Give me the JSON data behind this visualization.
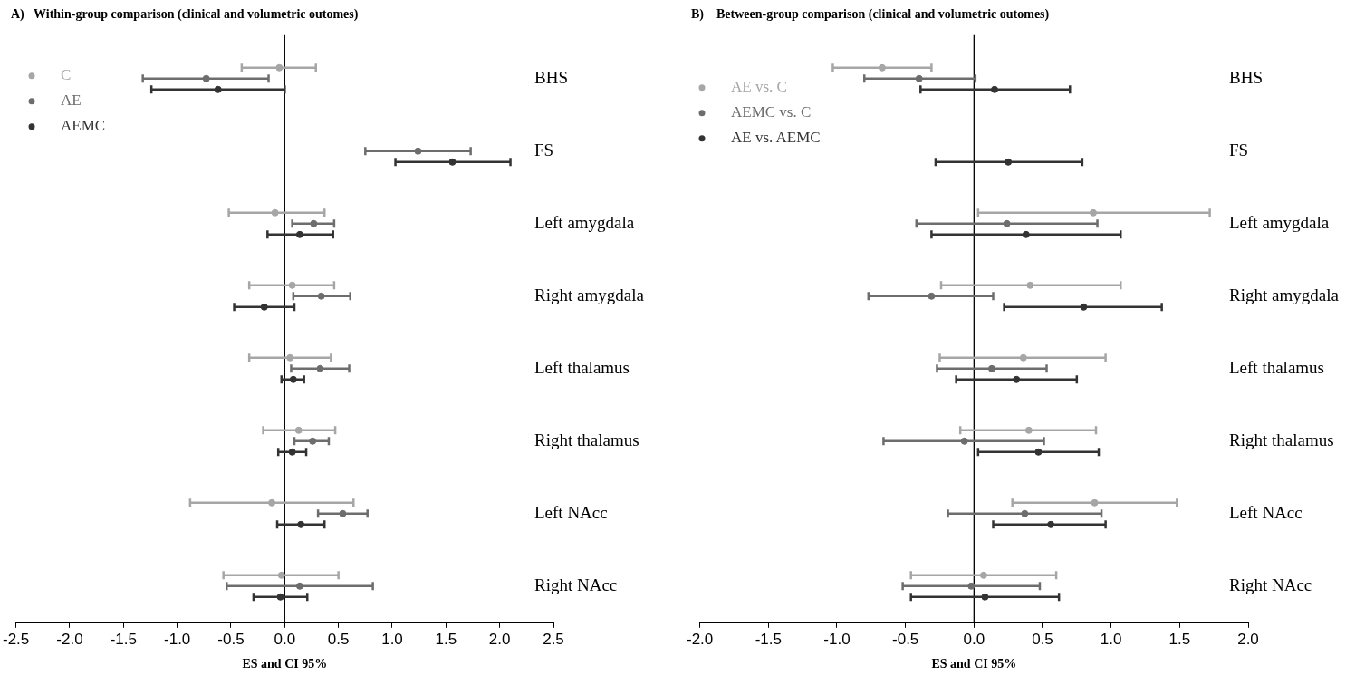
{
  "chart_data": [
    {
      "type": "scatter",
      "orientation": "horizontal",
      "title": "A)   Within-group comparison (clinical and volumetric outomes)",
      "xlabel": "ES and CI 95%",
      "categories": [
        "BHS",
        "FS",
        "Left amygdala",
        "Right amygdala",
        "Left thalamus",
        "Right thalamus",
        "Left NAcc",
        "Right NAcc"
      ],
      "series": [
        {
          "name": "C",
          "color": "#a6a6a6",
          "values": [
            -0.05,
            null,
            -0.09,
            0.07,
            0.05,
            0.13,
            -0.12,
            -0.03
          ],
          "errors": [
            [
              -0.4,
              0.29
            ],
            null,
            [
              -0.52,
              0.37
            ],
            [
              -0.33,
              0.46
            ],
            [
              -0.33,
              0.43
            ],
            [
              -0.2,
              0.47
            ],
            [
              -0.88,
              0.64
            ],
            [
              -0.57,
              0.5
            ]
          ]
        },
        {
          "name": "AE",
          "color": "#6d6d6d",
          "values": [
            -0.73,
            1.24,
            0.27,
            0.34,
            0.33,
            0.26,
            0.54,
            0.14
          ],
          "errors": [
            [
              -1.32,
              -0.15
            ],
            [
              0.75,
              1.73
            ],
            [
              0.07,
              0.46
            ],
            [
              0.08,
              0.61
            ],
            [
              0.06,
              0.6
            ],
            [
              0.09,
              0.41
            ],
            [
              0.31,
              0.77
            ],
            [
              -0.54,
              0.82
            ]
          ]
        },
        {
          "name": "AEMC",
          "color": "#333333",
          "values": [
            -0.62,
            1.56,
            0.14,
            -0.19,
            0.08,
            0.07,
            0.15,
            -0.04
          ],
          "errors": [
            [
              -1.24,
              0.0
            ],
            [
              1.03,
              2.1
            ],
            [
              -0.16,
              0.45
            ],
            [
              -0.47,
              0.09
            ],
            [
              -0.03,
              0.18
            ],
            [
              -0.06,
              0.2
            ],
            [
              -0.07,
              0.37
            ],
            [
              -0.29,
              0.21
            ]
          ]
        }
      ],
      "xlim": [
        -2.5,
        2.5
      ],
      "xticks": [
        {
          "value": -2.5,
          "label": "-2.5"
        },
        {
          "value": -2,
          "label": "-2.0"
        },
        {
          "value": -1.5,
          "label": "-1.5"
        },
        {
          "value": -1,
          "label": "-1.0"
        },
        {
          "value": -0.5,
          "label": "-0.5"
        },
        {
          "value": 0,
          "label": "0.0"
        },
        {
          "value": 0.5,
          "label": "0.5"
        },
        {
          "value": 1,
          "label": "1.0"
        },
        {
          "value": 1.5,
          "label": "1.5"
        },
        {
          "value": 2,
          "label": "2.0"
        },
        {
          "value": 2.5,
          "label": "2.5"
        }
      ],
      "ref_lines": [
        {
          "axis": "x",
          "value": 0,
          "color": "#000000"
        }
      ],
      "legend": "top left",
      "marker": "circle",
      "grid": false
    },
    {
      "type": "scatter",
      "orientation": "horizontal",
      "title": "B)    Between-group comparison (clinical and volumetric outomes)",
      "xlabel": "ES and CI 95%",
      "categories": [
        "BHS",
        "FS",
        "Left amygdala",
        "Right amygdala",
        "Left thalamus",
        "Right thalamus",
        "Left NAcc",
        "Right NAcc"
      ],
      "series": [
        {
          "name": "AE vs. C",
          "color": "#a6a6a6",
          "values": [
            -0.67,
            null,
            0.87,
            0.41,
            0.36,
            0.4,
            0.88,
            0.07
          ],
          "errors": [
            [
              -1.03,
              -0.31
            ],
            null,
            [
              0.03,
              1.72
            ],
            [
              -0.24,
              1.07
            ],
            [
              -0.25,
              0.96
            ],
            [
              -0.1,
              0.89
            ],
            [
              0.28,
              1.48
            ],
            [
              -0.46,
              0.6
            ]
          ]
        },
        {
          "name": "AEMC vs. C",
          "color": "#6d6d6d",
          "values": [
            -0.4,
            null,
            0.24,
            -0.31,
            0.13,
            -0.07,
            0.37,
            -0.02
          ],
          "errors": [
            [
              -0.8,
              0.01
            ],
            null,
            [
              -0.42,
              0.9
            ],
            [
              -0.77,
              0.14
            ],
            [
              -0.27,
              0.53
            ],
            [
              -0.66,
              0.51
            ],
            [
              -0.19,
              0.93
            ],
            [
              -0.52,
              0.48
            ]
          ]
        },
        {
          "name": "AE vs. AEMC",
          "color": "#333333",
          "values": [
            0.15,
            0.25,
            0.38,
            0.8,
            0.31,
            0.47,
            0.56,
            0.08
          ],
          "errors": [
            [
              -0.39,
              0.7
            ],
            [
              -0.28,
              0.79
            ],
            [
              -0.31,
              1.07
            ],
            [
              0.22,
              1.37
            ],
            [
              -0.13,
              0.75
            ],
            [
              0.03,
              0.91
            ],
            [
              0.14,
              0.96
            ],
            [
              -0.46,
              0.62
            ]
          ]
        }
      ],
      "xlim": [
        -2,
        2
      ],
      "xticks": [
        {
          "value": -2,
          "label": "-2.0"
        },
        {
          "value": -1.5,
          "label": "-1.5"
        },
        {
          "value": -1,
          "label": "-1.0"
        },
        {
          "value": -0.5,
          "label": "-0.5"
        },
        {
          "value": 0,
          "label": "0.0"
        },
        {
          "value": 0.5,
          "label": "0.5"
        },
        {
          "value": 1,
          "label": "1.0"
        },
        {
          "value": 1.5,
          "label": "1.5"
        },
        {
          "value": 2,
          "label": "2.0"
        }
      ],
      "ref_lines": [
        {
          "axis": "x",
          "value": 0,
          "color": "#000000"
        }
      ],
      "legend": "top left",
      "marker": "circle",
      "grid": false
    }
  ]
}
